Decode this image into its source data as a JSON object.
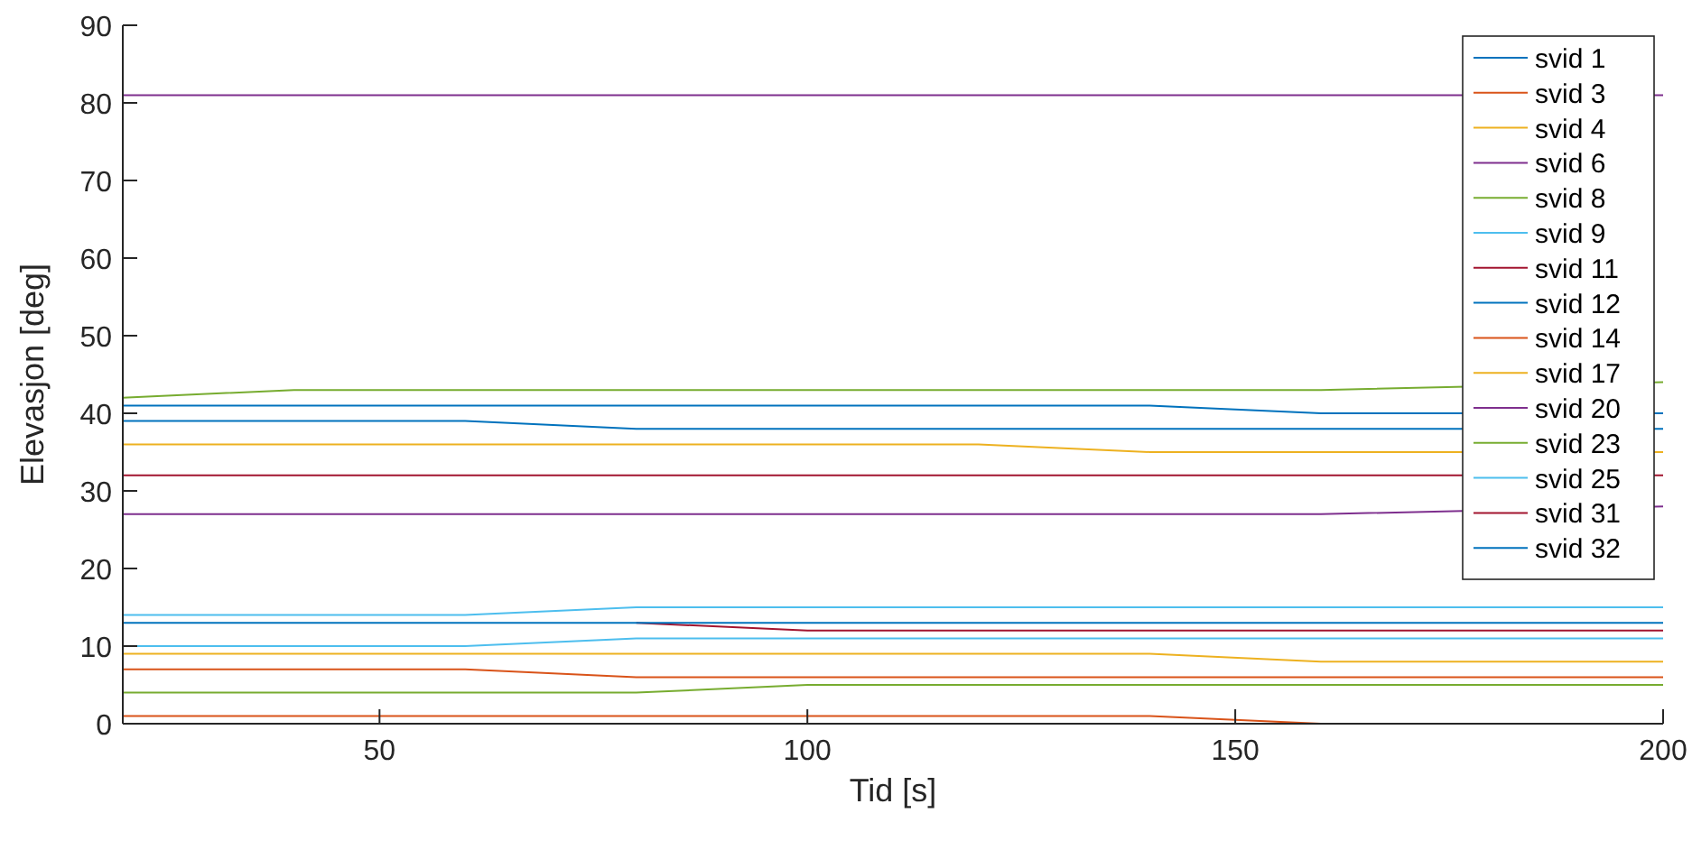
{
  "chart_data": {
    "type": "line",
    "xlabel": "Tid [s]",
    "ylabel": "Elevasjon [deg]",
    "x": [
      20,
      40,
      60,
      80,
      100,
      120,
      140,
      160,
      200
    ],
    "xlim": [
      20,
      200
    ],
    "xticks": [
      50,
      100,
      150,
      200
    ],
    "ylim": [
      0,
      90
    ],
    "yticks": [
      0,
      10,
      20,
      30,
      40,
      50,
      60,
      70,
      80,
      90
    ],
    "grid": false,
    "legend": "top right",
    "series": [
      {
        "name": "svid 1",
        "color": "#0072bd",
        "values": [
          41,
          41,
          41,
          41,
          41,
          41,
          41,
          40,
          40
        ]
      },
      {
        "name": "svid 3",
        "color": "#d95319",
        "values": [
          7,
          7,
          7,
          6,
          6,
          6,
          6,
          6,
          6
        ]
      },
      {
        "name": "svid 4",
        "color": "#edb120",
        "values": [
          36,
          36,
          36,
          36,
          36,
          36,
          35,
          35,
          35
        ]
      },
      {
        "name": "svid 6",
        "color": "#7e2f8e",
        "values": [
          81,
          81,
          81,
          81,
          81,
          81,
          81,
          81,
          81
        ]
      },
      {
        "name": "svid 8",
        "color": "#77ac30",
        "values": [
          42,
          43,
          43,
          43,
          43,
          43,
          43,
          43,
          44
        ]
      },
      {
        "name": "svid 9",
        "color": "#4dbeee",
        "values": [
          14,
          14,
          14,
          15,
          15,
          15,
          15,
          15,
          15
        ]
      },
      {
        "name": "svid 11",
        "color": "#a2142f",
        "values": [
          32,
          32,
          32,
          32,
          32,
          32,
          32,
          32,
          32
        ]
      },
      {
        "name": "svid 12",
        "color": "#0072bd",
        "values": [
          39,
          39,
          39,
          38,
          38,
          38,
          38,
          38,
          38
        ]
      },
      {
        "name": "svid 14",
        "color": "#d95319",
        "values": [
          1,
          1,
          1,
          1,
          1,
          1,
          1,
          0,
          0
        ]
      },
      {
        "name": "svid 17",
        "color": "#edb120",
        "values": [
          9,
          9,
          9,
          9,
          9,
          9,
          9,
          8,
          8
        ]
      },
      {
        "name": "svid 20",
        "color": "#7e2f8e",
        "values": [
          27,
          27,
          27,
          27,
          27,
          27,
          27,
          27,
          28
        ]
      },
      {
        "name": "svid 23",
        "color": "#77ac30",
        "values": [
          4,
          4,
          4,
          4,
          5,
          5,
          5,
          5,
          5
        ]
      },
      {
        "name": "svid 25",
        "color": "#4dbeee",
        "values": [
          10,
          10,
          10,
          11,
          11,
          11,
          11,
          11,
          11
        ]
      },
      {
        "name": "svid 31",
        "color": "#a2142f",
        "values": [
          null,
          null,
          null,
          13,
          12,
          12,
          12,
          12,
          12
        ]
      },
      {
        "name": "svid 32",
        "color": "#0072bd",
        "values": [
          13,
          13,
          13,
          13,
          13,
          13,
          13,
          13,
          13
        ]
      }
    ]
  }
}
